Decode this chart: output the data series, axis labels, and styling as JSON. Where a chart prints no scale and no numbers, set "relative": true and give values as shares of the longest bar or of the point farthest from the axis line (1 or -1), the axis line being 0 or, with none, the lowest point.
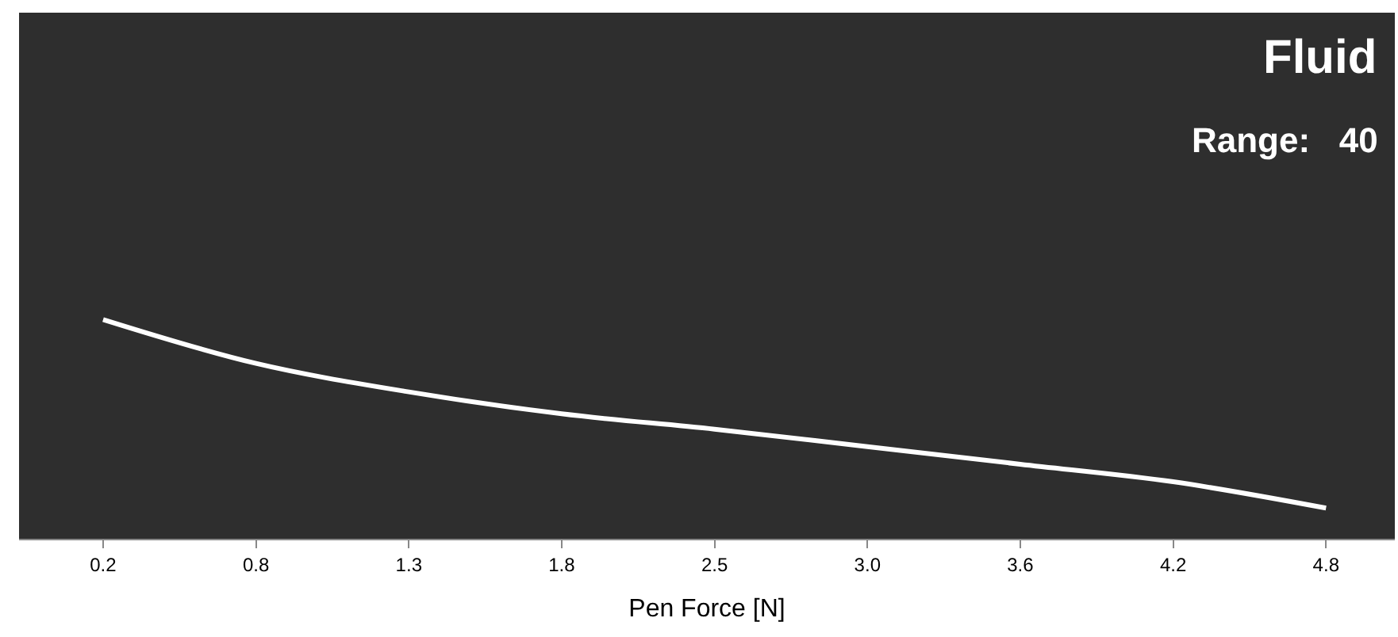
{
  "chart_data": {
    "type": "line",
    "relative": true,
    "xlabel": "Pen Force [N]",
    "categories": [
      "0.2",
      "0.8",
      "1.3",
      "1.8",
      "2.5",
      "3.0",
      "3.6",
      "4.2",
      "4.8"
    ],
    "series": [
      {
        "color": "#ffffff",
        "values": [
          1.0,
          0.8,
          0.67,
          0.57,
          0.5,
          0.42,
          0.34,
          0.26,
          0.14
        ]
      }
    ],
    "annotations": [
      "Fluid",
      "Range:   40"
    ],
    "grid": false,
    "marker": "none",
    "line_style": "solid"
  }
}
